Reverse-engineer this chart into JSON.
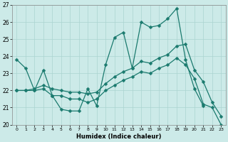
{
  "xlabel": "Humidex (Indice chaleur)",
  "bg_color": "#cceae8",
  "line_color": "#1a7a6e",
  "grid_color": "#aad4d0",
  "xlim": [
    -0.5,
    23.5
  ],
  "ylim": [
    20,
    27
  ],
  "xticks": [
    0,
    1,
    2,
    3,
    4,
    5,
    6,
    7,
    8,
    9,
    10,
    11,
    12,
    13,
    14,
    15,
    16,
    17,
    18,
    19,
    20,
    21,
    22,
    23
  ],
  "yticks": [
    20,
    21,
    22,
    23,
    24,
    25,
    26,
    27
  ],
  "series1_x": [
    0,
    1,
    2,
    3,
    4,
    5,
    6,
    7,
    8,
    9,
    10,
    11,
    12,
    13,
    14,
    15,
    16,
    17,
    18,
    19,
    20,
    21
  ],
  "series1_y": [
    23.8,
    23.3,
    22.0,
    23.2,
    21.7,
    20.9,
    20.8,
    20.8,
    22.1,
    21.1,
    23.5,
    25.1,
    25.4,
    23.3,
    26.0,
    25.7,
    25.8,
    26.2,
    26.8,
    23.8,
    22.1,
    21.1
  ],
  "series2_x": [
    0,
    1,
    2,
    3,
    4,
    5,
    6,
    7,
    8,
    9,
    10,
    11,
    12,
    13,
    14,
    15,
    16,
    17,
    18,
    19,
    20,
    21,
    22,
    23
  ],
  "series2_y": [
    22.0,
    22.0,
    22.1,
    22.3,
    22.1,
    22.0,
    21.9,
    21.9,
    21.8,
    21.9,
    22.4,
    22.8,
    23.1,
    23.3,
    23.7,
    23.6,
    23.9,
    24.1,
    24.6,
    24.7,
    23.2,
    22.5,
    21.3,
    20.5
  ],
  "series3_x": [
    0,
    1,
    2,
    3,
    4,
    5,
    6,
    7,
    8,
    9,
    10,
    11,
    12,
    13,
    14,
    15,
    16,
    17,
    18,
    19,
    20,
    21,
    22,
    23
  ],
  "series3_y": [
    22.0,
    22.0,
    22.0,
    22.1,
    21.7,
    21.7,
    21.5,
    21.5,
    21.3,
    21.5,
    22.0,
    22.3,
    22.6,
    22.8,
    23.1,
    23.0,
    23.3,
    23.5,
    23.9,
    23.5,
    22.7,
    21.2,
    21.0,
    20.0
  ]
}
